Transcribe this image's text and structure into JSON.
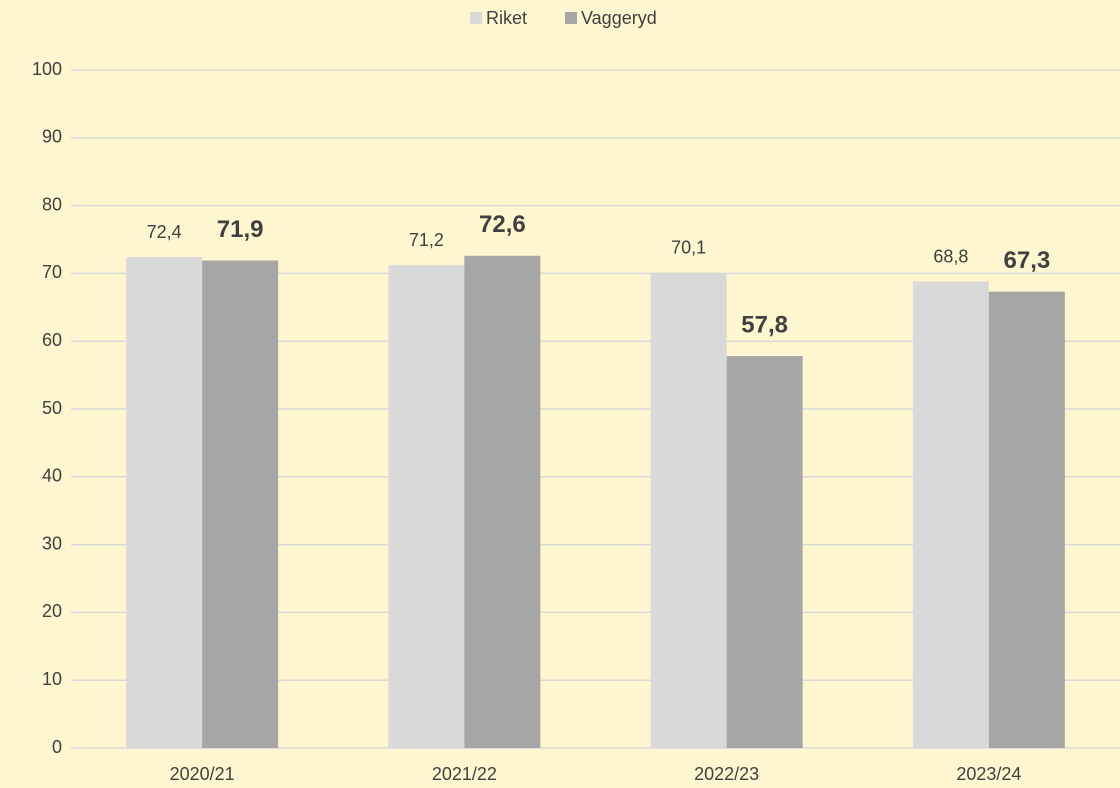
{
  "chart_data": {
    "type": "bar",
    "categories": [
      "2020/21",
      "2021/22",
      "2022/23",
      "2023/24"
    ],
    "series": [
      {
        "name": "Riket",
        "color": "#d9d9d9",
        "values": [
          72.4,
          71.2,
          70.1,
          68.8
        ],
        "value_labels": [
          "72,4",
          "71,2",
          "70,1",
          "68,8"
        ]
      },
      {
        "name": "Vaggeryd",
        "color": "#a6a6a6",
        "values": [
          71.9,
          72.6,
          57.8,
          67.3
        ],
        "value_labels": [
          "71,9",
          "72,6",
          "57,8",
          "67,3"
        ]
      }
    ],
    "ylim": [
      0,
      100
    ],
    "yticks": [
      0,
      10,
      20,
      30,
      40,
      50,
      60,
      70,
      80,
      90,
      100
    ],
    "grid": true,
    "legend": "top"
  }
}
